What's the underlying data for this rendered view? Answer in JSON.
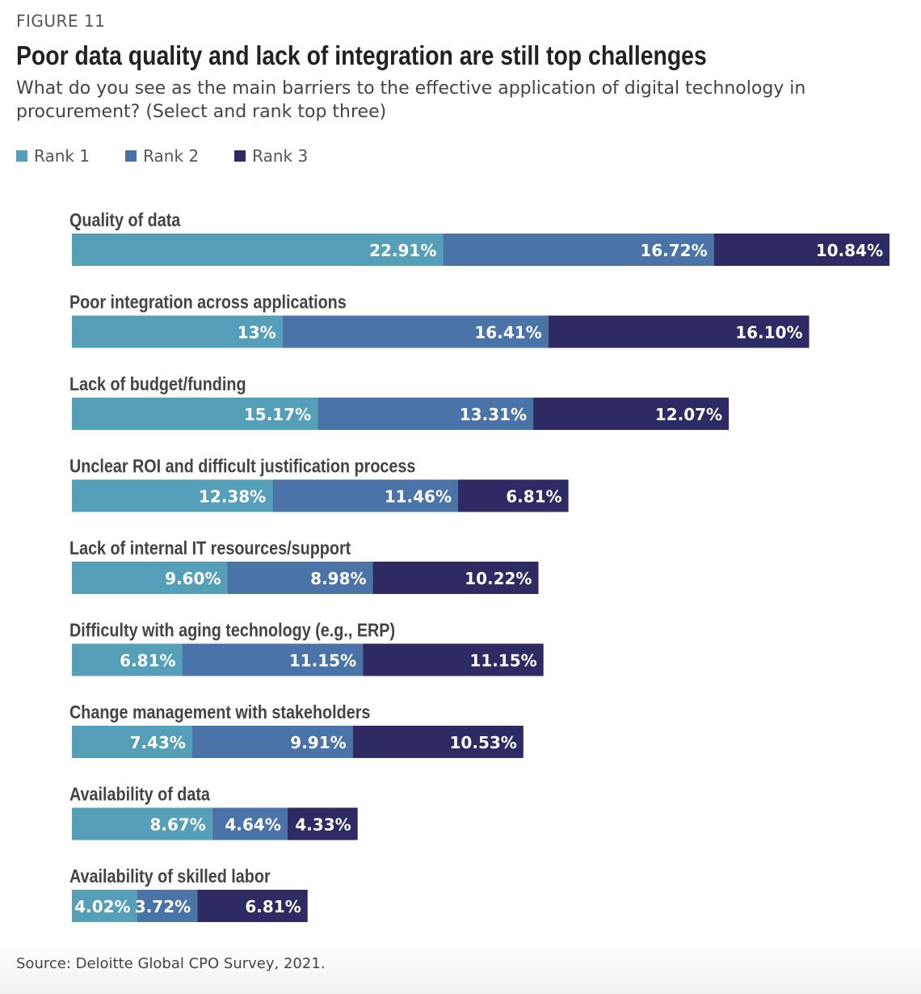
{
  "figure_label": "FIGURE 11",
  "source": "Source: Deloitte Global CPO Survey, 2021.",
  "colors": {
    "rank1": "#55a0b8",
    "rank2": "#4a74a8",
    "rank3": "#2e2a63"
  },
  "chart_data": {
    "type": "bar",
    "orientation": "horizontal",
    "stacked": true,
    "title": "Poor data quality and lack of integration are still top challenges",
    "subtitle": "What do you see as the main barriers to the effective application of digital technology in procurement? (Select and rank top three)",
    "legend_position": "top-left",
    "categories": [
      "Quality of data",
      "Poor integration across applications",
      "Lack of budget/funding",
      "Unclear ROI and difficult justification process",
      "Lack of internal IT resources/support",
      "Difficulty with aging technology (e.g., ERP)",
      "Change management with stakeholders",
      "Availability of data",
      "Availability of skilled labor"
    ],
    "series": [
      {
        "name": "Rank 1",
        "values": [
          22.91,
          13,
          15.17,
          12.38,
          9.6,
          6.81,
          7.43,
          8.67,
          4.02
        ],
        "labels": [
          "22.91%",
          "13%",
          "15.17%",
          "12.38%",
          "9.60%",
          "6.81%",
          "7.43%",
          "8.67%",
          "4.02%"
        ]
      },
      {
        "name": "Rank 2",
        "values": [
          16.72,
          16.41,
          13.31,
          11.46,
          8.98,
          11.15,
          9.91,
          4.64,
          3.72
        ],
        "labels": [
          "16.72%",
          "16.41%",
          "13.31%",
          "11.46%",
          "8.98%",
          "11.15%",
          "9.91%",
          "4.64%",
          "3.72%"
        ]
      },
      {
        "name": "Rank 3",
        "values": [
          10.84,
          16.1,
          12.07,
          6.81,
          10.22,
          11.15,
          10.53,
          4.33,
          6.81
        ],
        "labels": [
          "10.84%",
          "16.10%",
          "12.07%",
          "6.81%",
          "10.22%",
          "11.15%",
          "10.53%",
          "4.33%",
          "6.81%"
        ]
      }
    ],
    "grid": false
  }
}
